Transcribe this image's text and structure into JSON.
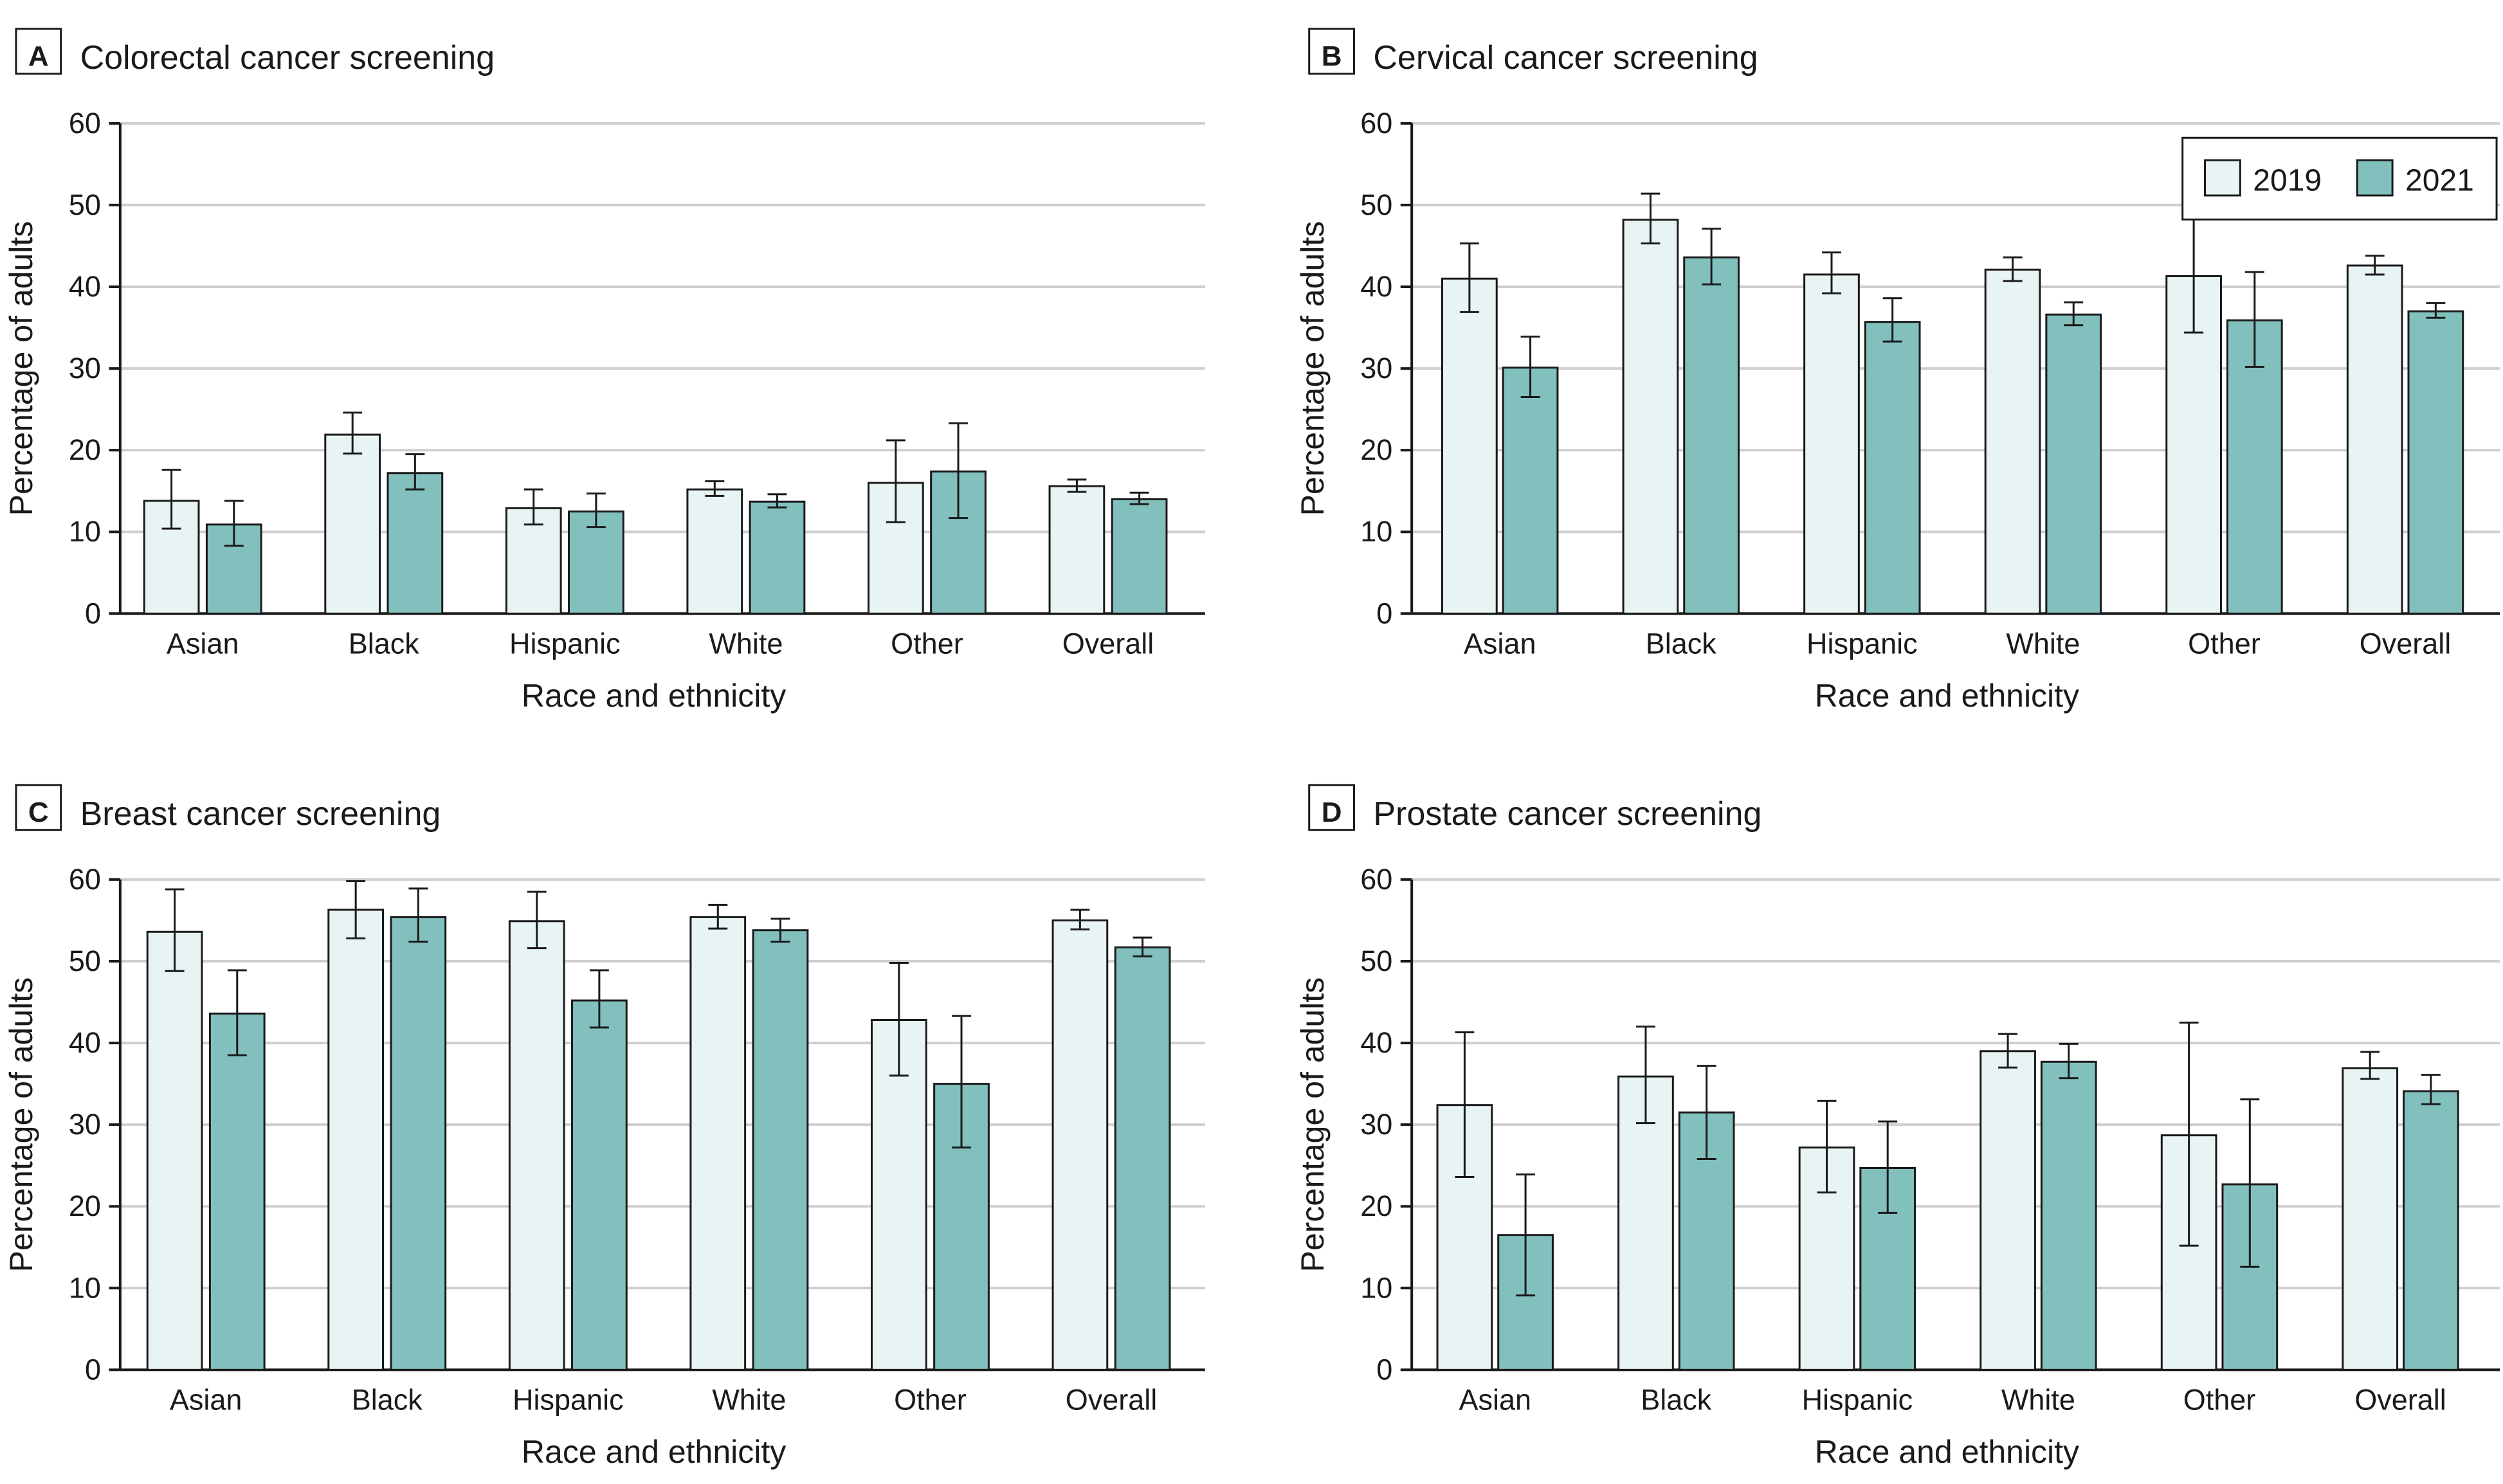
{
  "legend": {
    "entries": [
      {
        "label": "2019",
        "color": "#e8f3f3"
      },
      {
        "label": "2021",
        "color": "#82c0bd"
      }
    ]
  },
  "chart_data": [
    {
      "panel": "A",
      "title": "Colorectal cancer screening",
      "type": "bar",
      "xlabel": "Race and ethnicity",
      "ylabel": "Percentage of adults",
      "ylim": [
        0,
        60
      ],
      "yticks": [
        0,
        10,
        20,
        30,
        40,
        50,
        60
      ],
      "grid": true,
      "legend": false,
      "categories": [
        "Asian",
        "Black",
        "Hispanic",
        "White",
        "Other",
        "Overall"
      ],
      "series": [
        {
          "name": "2019",
          "values": [
            13.8,
            21.9,
            12.9,
            15.2,
            16.0,
            15.6
          ],
          "lower": [
            10.4,
            19.6,
            10.9,
            14.4,
            11.2,
            14.9
          ],
          "upper": [
            17.6,
            24.6,
            15.2,
            16.2,
            21.2,
            16.4
          ]
        },
        {
          "name": "2021",
          "values": [
            10.9,
            17.2,
            12.5,
            13.7,
            17.4,
            14.0
          ],
          "lower": [
            8.3,
            15.2,
            10.6,
            13.0,
            11.7,
            13.4
          ],
          "upper": [
            13.8,
            19.5,
            14.7,
            14.6,
            23.3,
            14.8
          ]
        }
      ]
    },
    {
      "panel": "B",
      "title": "Cervical cancer screening",
      "type": "bar",
      "xlabel": "Race and ethnicity",
      "ylabel": "Percentage of adults",
      "ylim": [
        0,
        60
      ],
      "yticks": [
        0,
        10,
        20,
        30,
        40,
        50,
        60
      ],
      "grid": true,
      "legend": "top-right",
      "categories": [
        "Asian",
        "Black",
        "Hispanic",
        "White",
        "Other",
        "Overall"
      ],
      "series": [
        {
          "name": "2019",
          "values": [
            41.0,
            48.2,
            41.5,
            42.1,
            41.3,
            42.6
          ],
          "lower": [
            36.9,
            45.3,
            39.2,
            40.7,
            34.4,
            41.5
          ],
          "upper": [
            45.3,
            51.4,
            44.2,
            43.6,
            48.4,
            43.8
          ]
        },
        {
          "name": "2021",
          "values": [
            30.1,
            43.6,
            35.7,
            36.6,
            35.9,
            37.0
          ],
          "lower": [
            26.5,
            40.3,
            33.3,
            35.3,
            30.2,
            36.2
          ],
          "upper": [
            33.9,
            47.1,
            38.6,
            38.1,
            41.8,
            38.0
          ]
        }
      ]
    },
    {
      "panel": "C",
      "title": "Breast cancer screening",
      "type": "bar",
      "xlabel": "Race and ethnicity",
      "ylabel": "Percentage of adults",
      "ylim": [
        0,
        60
      ],
      "yticks": [
        0,
        10,
        20,
        30,
        40,
        50,
        60
      ],
      "grid": true,
      "legend": false,
      "categories": [
        "Asian",
        "Black",
        "Hispanic",
        "White",
        "Other",
        "Overall"
      ],
      "series": [
        {
          "name": "2019",
          "values": [
            53.6,
            56.3,
            54.9,
            55.4,
            42.8,
            55.0
          ],
          "lower": [
            48.8,
            52.8,
            51.6,
            54.0,
            36.0,
            53.9
          ],
          "upper": [
            58.8,
            59.8,
            58.5,
            56.9,
            49.8,
            56.3
          ]
        },
        {
          "name": "2021",
          "values": [
            43.6,
            55.4,
            45.2,
            53.8,
            35.0,
            51.7
          ],
          "lower": [
            38.5,
            52.4,
            41.9,
            52.4,
            27.2,
            50.6
          ],
          "upper": [
            48.9,
            58.9,
            48.9,
            55.2,
            43.3,
            52.9
          ]
        }
      ]
    },
    {
      "panel": "D",
      "title": "Prostate cancer screening",
      "type": "bar",
      "xlabel": "Race and ethnicity",
      "ylabel": "Percentage of adults",
      "ylim": [
        0,
        60
      ],
      "yticks": [
        0,
        10,
        20,
        30,
        40,
        50,
        60
      ],
      "grid": true,
      "legend": false,
      "categories": [
        "Asian",
        "Black",
        "Hispanic",
        "White",
        "Other",
        "Overall"
      ],
      "series": [
        {
          "name": "2019",
          "values": [
            32.4,
            35.9,
            27.2,
            39.0,
            28.7,
            36.9
          ],
          "lower": [
            23.6,
            30.2,
            21.7,
            37.0,
            15.2,
            35.6
          ],
          "upper": [
            41.3,
            42.0,
            32.9,
            41.1,
            42.5,
            38.9
          ]
        },
        {
          "name": "2021",
          "values": [
            16.5,
            31.5,
            24.7,
            37.7,
            22.7,
            34.1
          ],
          "lower": [
            9.1,
            25.8,
            19.2,
            35.7,
            12.6,
            32.5
          ],
          "upper": [
            23.9,
            37.2,
            30.4,
            39.9,
            33.1,
            36.1
          ]
        }
      ]
    }
  ]
}
